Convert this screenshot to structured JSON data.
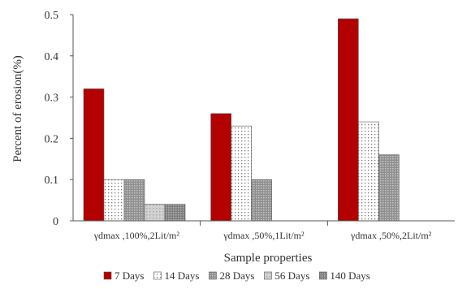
{
  "chart_data": {
    "type": "bar",
    "title": "",
    "xlabel": "Sample properties",
    "ylabel": "Percent of erosion(%)",
    "ylim": [
      0,
      0.5
    ],
    "yticks": [
      "0",
      "0.1",
      "0.2",
      "0.3",
      "0.4",
      "0.5"
    ],
    "grid": false,
    "legend_position": "bottom",
    "categories": [
      "γdmax ,100%,2Lit/m²",
      "γdmax ,50%,1Lit/m²",
      "γdmax ,50%,2Lit/m²"
    ],
    "series": [
      {
        "name": "7 Days",
        "pattern": "solid",
        "color": "#b30000",
        "values": [
          0.32,
          0.26,
          0.49
        ]
      },
      {
        "name": "14 Days",
        "pattern": "dotted",
        "color": "#ffffff",
        "values": [
          0.1,
          0.23,
          0.24
        ]
      },
      {
        "name": "28 Days",
        "pattern": "dense-grid",
        "color": "#9a9a9a",
        "values": [
          0.1,
          0.1,
          0.16
        ]
      },
      {
        "name": "56 Days",
        "pattern": "light-grid",
        "color": "#c8c8c8",
        "values": [
          0.04,
          null,
          null
        ]
      },
      {
        "name": "140 Days",
        "pattern": "dark-grid",
        "color": "#8a8a8a",
        "values": [
          0.04,
          null,
          null
        ]
      }
    ]
  }
}
